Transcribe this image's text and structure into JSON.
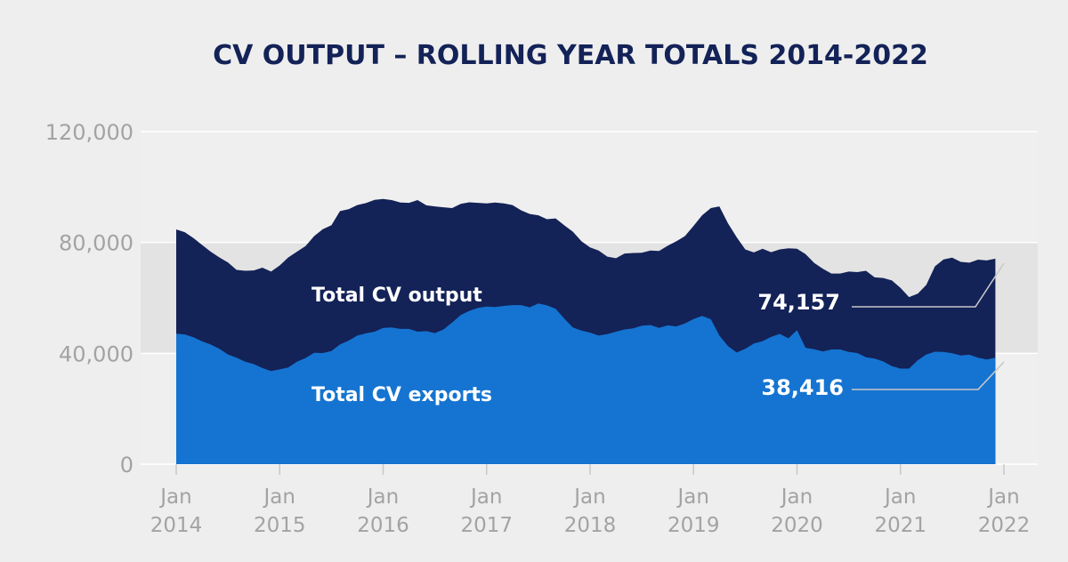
{
  "chart_data": {
    "type": "area",
    "title": "CV OUTPUT – ROLLING YEAR TOTALS 2014-2022",
    "xlabel": "",
    "ylabel": "",
    "ylim": [
      0,
      120000
    ],
    "yticks": [
      {
        "value": 0,
        "label": "0"
      },
      {
        "value": 40000,
        "label": "40,000"
      },
      {
        "value": 80000,
        "label": "80,000"
      },
      {
        "value": 120000,
        "label": "120,000"
      }
    ],
    "xlim": [
      2014.0,
      2022.0
    ],
    "xticks": [
      {
        "value": 2014,
        "month": "Jan",
        "year": "2014"
      },
      {
        "value": 2015,
        "month": "Jan",
        "year": "2015"
      },
      {
        "value": 2016,
        "month": "Jan",
        "year": "2016"
      },
      {
        "value": 2017,
        "month": "Jan",
        "year": "2017"
      },
      {
        "value": 2018,
        "month": "Jan",
        "year": "2018"
      },
      {
        "value": 2019,
        "month": "Jan",
        "year": "2019"
      },
      {
        "value": 2020,
        "month": "Jan",
        "year": "2020"
      },
      {
        "value": 2021,
        "month": "Jan",
        "year": "2021"
      },
      {
        "value": 2022,
        "month": "Jan",
        "year": "2022"
      }
    ],
    "grid": "horizontal bands",
    "x": [
      2014.0,
      2014.083,
      2014.167,
      2014.25,
      2014.333,
      2014.417,
      2014.5,
      2014.583,
      2014.667,
      2014.75,
      2014.833,
      2014.917,
      2015.0,
      2015.083,
      2015.167,
      2015.25,
      2015.333,
      2015.417,
      2015.5,
      2015.583,
      2015.667,
      2015.75,
      2015.833,
      2015.917,
      2016.0,
      2016.083,
      2016.167,
      2016.25,
      2016.333,
      2016.417,
      2016.5,
      2016.583,
      2016.667,
      2016.75,
      2016.833,
      2016.917,
      2017.0,
      2017.083,
      2017.167,
      2017.25,
      2017.333,
      2017.417,
      2017.5,
      2017.583,
      2017.667,
      2017.75,
      2017.833,
      2017.917,
      2018.0,
      2018.083,
      2018.167,
      2018.25,
      2018.333,
      2018.417,
      2018.5,
      2018.583,
      2018.667,
      2018.75,
      2018.833,
      2018.917,
      2019.0,
      2019.083,
      2019.167,
      2019.25,
      2019.333,
      2019.417,
      2019.5,
      2019.583,
      2019.667,
      2019.75,
      2019.833,
      2019.917,
      2020.0,
      2020.083,
      2020.167,
      2020.25,
      2020.333,
      2020.417,
      2020.5,
      2020.583,
      2020.667,
      2020.75,
      2020.833,
      2020.917,
      2021.0,
      2021.083,
      2021.167,
      2021.25,
      2021.333,
      2021.417,
      2021.5,
      2021.583,
      2021.667,
      2021.75,
      2021.833,
      2021.917
    ],
    "series": [
      {
        "name": "Total CV output",
        "color": "#132257",
        "values": [
          84700,
          83700,
          81600,
          79100,
          76700,
          74600,
          72800,
          70100,
          69800,
          69900,
          70900,
          69500,
          71700,
          74600,
          76700,
          78700,
          82300,
          84800,
          86200,
          91300,
          92000,
          93500,
          94200,
          95400,
          95700,
          95300,
          94400,
          94300,
          95300,
          93400,
          93000,
          92700,
          92400,
          93900,
          94500,
          94300,
          94100,
          94400,
          94100,
          93500,
          91600,
          90300,
          89800,
          88400,
          88700,
          86200,
          83900,
          80400,
          78200,
          77100,
          74900,
          74300,
          76000,
          76200,
          76300,
          77100,
          76900,
          78800,
          80400,
          82300,
          86000,
          89800,
          92400,
          93000,
          86900,
          81900,
          77500,
          76400,
          77700,
          76500,
          77500,
          77900,
          77700,
          75800,
          72600,
          70500,
          68800,
          68800,
          69500,
          69300,
          69800,
          67400,
          67200,
          66300,
          63600,
          60300,
          61500,
          64700,
          71400,
          73900,
          74500,
          73000,
          72700,
          73800,
          73500,
          74157
        ]
      },
      {
        "name": "Total CV exports",
        "color": "#1574d1",
        "values": [
          47100,
          46800,
          45800,
          44300,
          43200,
          41600,
          39600,
          38400,
          37000,
          36100,
          34700,
          33600,
          34200,
          34900,
          37000,
          38300,
          40200,
          40100,
          40800,
          43200,
          44600,
          46400,
          47200,
          47800,
          49200,
          49300,
          48800,
          48800,
          47800,
          48000,
          47300,
          48600,
          51100,
          53800,
          55300,
          56400,
          56900,
          56700,
          57100,
          57400,
          57400,
          56600,
          58000,
          57300,
          56100,
          52600,
          49300,
          48200,
          47500,
          46400,
          46900,
          47800,
          48600,
          49000,
          50000,
          50200,
          49200,
          50100,
          49700,
          50800,
          52400,
          53500,
          52300,
          46400,
          42600,
          40300,
          41600,
          43500,
          44400,
          45900,
          47000,
          45400,
          48400,
          42000,
          41500,
          40700,
          41400,
          41400,
          40500,
          40100,
          38600,
          38100,
          37100,
          35400,
          34500,
          34500,
          37500,
          39600,
          40600,
          40500,
          40000,
          39200,
          39500,
          38400,
          37800,
          38416
        ]
      }
    ],
    "annotations": [
      {
        "series": "Total CV output",
        "label": "Total CV output"
      },
      {
        "series": "Total CV exports",
        "label": "Total CV exports"
      }
    ],
    "end_values": {
      "output": "74,157",
      "exports": "38,416"
    }
  }
}
